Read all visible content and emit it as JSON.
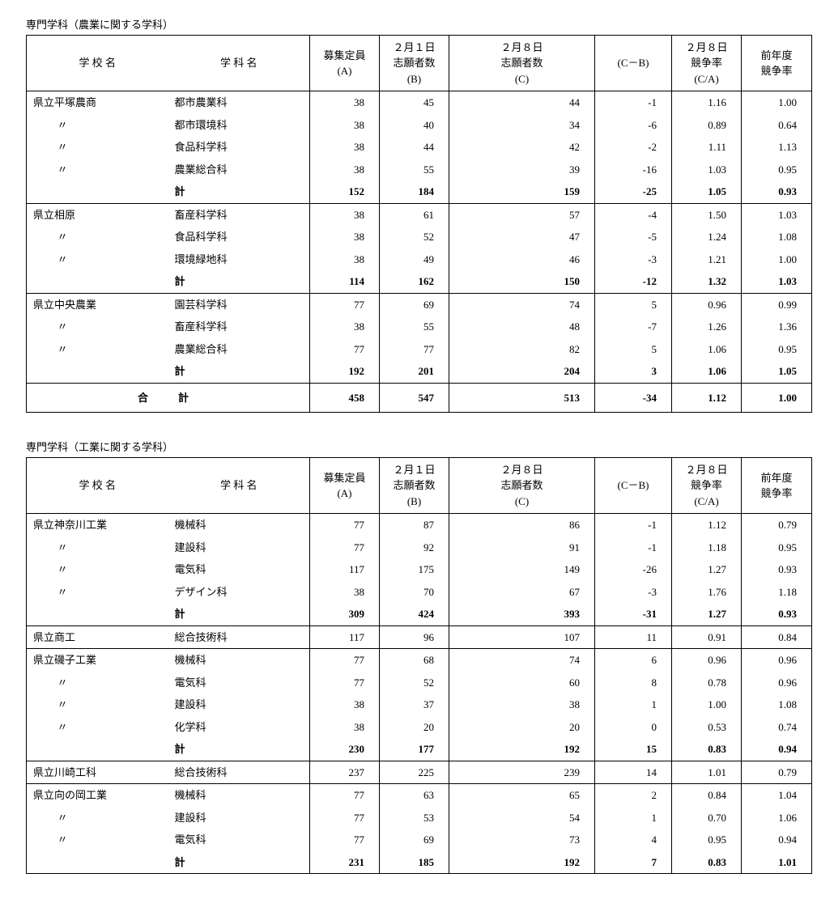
{
  "columns": {
    "school": "学 校 名",
    "dept": "学 科 名",
    "a": "募集定員\n(A)",
    "b": "２月１日\n志願者数\n(B)",
    "c": "２月８日\n志願者数\n(C)",
    "cb": "(C－B)",
    "ca": "２月８日\n競争率\n(C/A)",
    "prev": "前年度\n競争率"
  },
  "ditto": "〃",
  "subtotal_label": "計",
  "grandtotal_label": "合　計",
  "sections": [
    {
      "title": "専門学科（農業に関する学科）",
      "groups": [
        {
          "school": "県立平塚農商",
          "rows": [
            {
              "dept": "都市農業科",
              "a": 38,
              "b": 45,
              "c": 44,
              "cb": -1,
              "ca": "1.16",
              "prev": "1.00"
            },
            {
              "dept": "都市環境科",
              "a": 38,
              "b": 40,
              "c": 34,
              "cb": -6,
              "ca": "0.89",
              "prev": "0.64"
            },
            {
              "dept": "食品科学科",
              "a": 38,
              "b": 44,
              "c": 42,
              "cb": -2,
              "ca": "1.11",
              "prev": "1.13"
            },
            {
              "dept": "農業総合科",
              "a": 38,
              "b": 55,
              "c": 39,
              "cb": -16,
              "ca": "1.03",
              "prev": "0.95"
            }
          ],
          "subtotal": {
            "a": 152,
            "b": 184,
            "c": 159,
            "cb": -25,
            "ca": "1.05",
            "prev": "0.93"
          }
        },
        {
          "school": "県立相原",
          "rows": [
            {
              "dept": "畜産科学科",
              "a": 38,
              "b": 61,
              "c": 57,
              "cb": -4,
              "ca": "1.50",
              "prev": "1.03"
            },
            {
              "dept": "食品科学科",
              "a": 38,
              "b": 52,
              "c": 47,
              "cb": -5,
              "ca": "1.24",
              "prev": "1.08"
            },
            {
              "dept": "環境緑地科",
              "a": 38,
              "b": 49,
              "c": 46,
              "cb": -3,
              "ca": "1.21",
              "prev": "1.00"
            }
          ],
          "subtotal": {
            "a": 114,
            "b": 162,
            "c": 150,
            "cb": -12,
            "ca": "1.32",
            "prev": "1.03"
          }
        },
        {
          "school": "県立中央農業",
          "rows": [
            {
              "dept": "園芸科学科",
              "a": 77,
              "b": 69,
              "c": 74,
              "cb": 5,
              "ca": "0.96",
              "prev": "0.99"
            },
            {
              "dept": "畜産科学科",
              "a": 38,
              "b": 55,
              "c": 48,
              "cb": -7,
              "ca": "1.26",
              "prev": "1.36"
            },
            {
              "dept": "農業総合科",
              "a": 77,
              "b": 77,
              "c": 82,
              "cb": 5,
              "ca": "1.06",
              "prev": "0.95"
            }
          ],
          "subtotal": {
            "a": 192,
            "b": 201,
            "c": 204,
            "cb": 3,
            "ca": "1.06",
            "prev": "1.05"
          }
        }
      ],
      "grandtotal": {
        "a": 458,
        "b": 547,
        "c": 513,
        "cb": -34,
        "ca": "1.12",
        "prev": "1.00"
      }
    },
    {
      "title": "専門学科（工業に関する学科）",
      "groups": [
        {
          "school": "県立神奈川工業",
          "rows": [
            {
              "dept": "機械科",
              "a": 77,
              "b": 87,
              "c": 86,
              "cb": -1,
              "ca": "1.12",
              "prev": "0.79"
            },
            {
              "dept": "建設科",
              "a": 77,
              "b": 92,
              "c": 91,
              "cb": -1,
              "ca": "1.18",
              "prev": "0.95"
            },
            {
              "dept": "電気科",
              "a": 117,
              "b": 175,
              "c": 149,
              "cb": -26,
              "ca": "1.27",
              "prev": "0.93"
            },
            {
              "dept": "デザイン科",
              "a": 38,
              "b": 70,
              "c": 67,
              "cb": -3,
              "ca": "1.76",
              "prev": "1.18"
            }
          ],
          "subtotal": {
            "a": 309,
            "b": 424,
            "c": 393,
            "cb": -31,
            "ca": "1.27",
            "prev": "0.93"
          }
        },
        {
          "school": "県立商工",
          "rows": [
            {
              "dept": "総合技術科",
              "a": 117,
              "b": 96,
              "c": 107,
              "cb": 11,
              "ca": "0.91",
              "prev": "0.84"
            }
          ]
        },
        {
          "school": "県立磯子工業",
          "rows": [
            {
              "dept": "機械科",
              "a": 77,
              "b": 68,
              "c": 74,
              "cb": 6,
              "ca": "0.96",
              "prev": "0.96"
            },
            {
              "dept": "電気科",
              "a": 77,
              "b": 52,
              "c": 60,
              "cb": 8,
              "ca": "0.78",
              "prev": "0.96"
            },
            {
              "dept": "建設科",
              "a": 38,
              "b": 37,
              "c": 38,
              "cb": 1,
              "ca": "1.00",
              "prev": "1.08"
            },
            {
              "dept": "化学科",
              "a": 38,
              "b": 20,
              "c": 20,
              "cb": 0,
              "ca": "0.53",
              "prev": "0.74"
            }
          ],
          "subtotal": {
            "a": 230,
            "b": 177,
            "c": 192,
            "cb": 15,
            "ca": "0.83",
            "prev": "0.94"
          }
        },
        {
          "school": "県立川崎工科",
          "rows": [
            {
              "dept": "総合技術科",
              "a": 237,
              "b": 225,
              "c": 239,
              "cb": 14,
              "ca": "1.01",
              "prev": "0.79"
            }
          ]
        },
        {
          "school": "県立向の岡工業",
          "rows": [
            {
              "dept": "機械科",
              "a": 77,
              "b": 63,
              "c": 65,
              "cb": 2,
              "ca": "0.84",
              "prev": "1.04"
            },
            {
              "dept": "建設科",
              "a": 77,
              "b": 53,
              "c": 54,
              "cb": 1,
              "ca": "0.70",
              "prev": "1.06"
            },
            {
              "dept": "電気科",
              "a": 77,
              "b": 69,
              "c": 73,
              "cb": 4,
              "ca": "0.95",
              "prev": "0.94"
            }
          ],
          "subtotal": {
            "a": 231,
            "b": 185,
            "c": 192,
            "cb": 7,
            "ca": "0.83",
            "prev": "1.01"
          }
        }
      ]
    }
  ]
}
